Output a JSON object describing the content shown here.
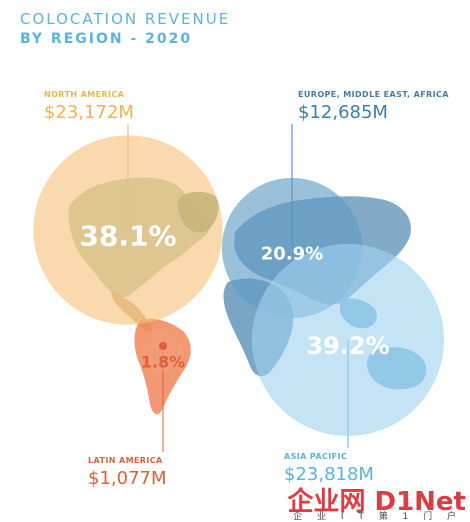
{
  "chart_data": {
    "type": "bubble-map",
    "title": "COLOCATION REVENUE",
    "subtitle": "BY REGION - 2020",
    "regions": [
      {
        "key": "north_america",
        "name": "NORTH AMERICA",
        "revenue": "$23,172M",
        "revenue_musd": 23172,
        "share_label": "38.1%",
        "share": 38.1,
        "color": "#f5c27a",
        "label_color": "#f0b35a",
        "map_color": "#8fb78f"
      },
      {
        "key": "emea",
        "name": "EUROPE, MIDDLE EAST, AFRICA",
        "revenue": "$12,685M",
        "revenue_musd": 12685,
        "share_label": "20.9%",
        "share": 20.9,
        "color": "#5e9bc4",
        "label_color": "#3f7fab",
        "map_color": "#5a8fb5"
      },
      {
        "key": "apac",
        "name": "ASIA PACIFIC",
        "revenue": "$23,818M",
        "revenue_musd": 23818,
        "share_label": "39.2%",
        "share": 39.2,
        "color": "#9fd2ef",
        "label_color": "#5bb4dd",
        "map_color": "#6fb0d8"
      },
      {
        "key": "latam",
        "name": "LATIN AMERICA",
        "revenue": "$1,077M",
        "revenue_musd": 1077,
        "share_label": "1.8%",
        "share": 1.8,
        "color": "#f0a07a",
        "label_color": "#e0603a",
        "map_color": "#f08a5a"
      }
    ]
  },
  "watermark": {
    "brand": "企业网 D1Net",
    "tagline": "企 业 I T 第 1 门 户"
  }
}
